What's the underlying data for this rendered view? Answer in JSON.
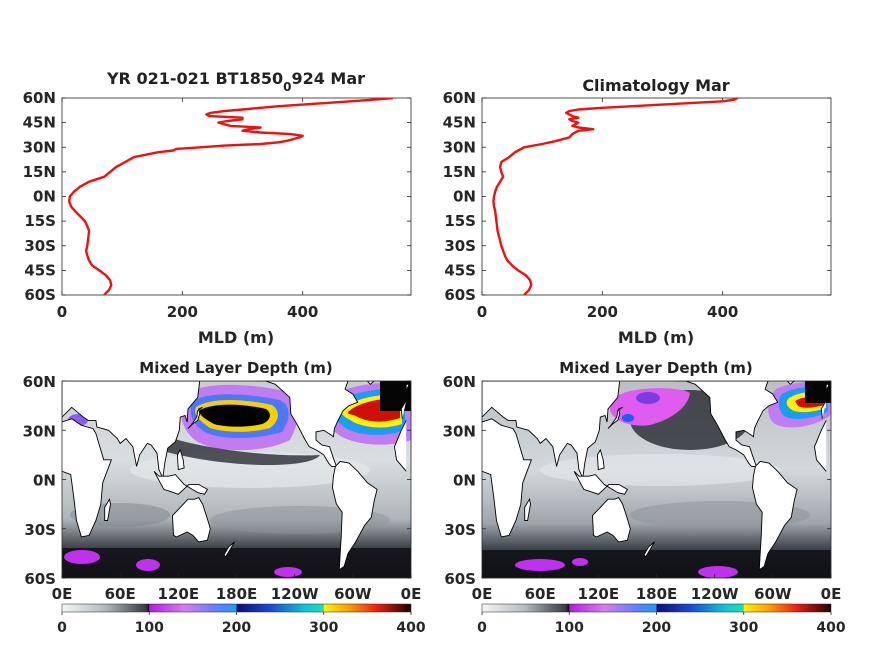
{
  "chart_data": [
    {
      "type": "line",
      "title": "YR 021-021 BT1850",
      "title_subscript": "0",
      "title_tail": "924 Mar",
      "xlabel": "MLD (m)",
      "ylabel": "",
      "xlim": [
        0,
        580
      ],
      "ylim": [
        -60,
        60
      ],
      "x_ticks": [
        "0",
        "200",
        "400"
      ],
      "y_ticks": [
        "60N",
        "45N",
        "30N",
        "15N",
        "0N",
        "15S",
        "30S",
        "45S",
        "60S"
      ],
      "grid": false,
      "color": "#ee1111",
      "points_lat": [
        -60,
        -57,
        -54,
        -51,
        -48,
        -45,
        -42,
        -39,
        -36,
        -33,
        -30,
        -27,
        -24,
        -21,
        -18,
        -15,
        -12,
        -9,
        -6,
        -3,
        0,
        3,
        6,
        9,
        12,
        15,
        18,
        21,
        24,
        27,
        28,
        29,
        30,
        31,
        32,
        33,
        34,
        35,
        36,
        37,
        38,
        39,
        40,
        41,
        42,
        43,
        44,
        45,
        46,
        47,
        48,
        49,
        50,
        51,
        52,
        53,
        54,
        55,
        56,
        57,
        58,
        59,
        60
      ],
      "points_mld": [
        70,
        78,
        82,
        80,
        73,
        62,
        50,
        45,
        42,
        40,
        42,
        43,
        44,
        45,
        42,
        38,
        30,
        22,
        15,
        12,
        13,
        20,
        30,
        45,
        70,
        80,
        90,
        105,
        120,
        160,
        185,
        190,
        230,
        270,
        330,
        360,
        375,
        385,
        395,
        400,
        380,
        330,
        300,
        310,
        330,
        280,
        270,
        260,
        275,
        300,
        300,
        245,
        240,
        248,
        270,
        300,
        330,
        360,
        400,
        440,
        480,
        520,
        550
      ]
    },
    {
      "type": "line",
      "title": "Climatology Mar",
      "xlabel": "MLD (m)",
      "ylabel": "",
      "xlim": [
        0,
        580
      ],
      "ylim": [
        -60,
        60
      ],
      "x_ticks": [
        "0",
        "200",
        "400"
      ],
      "y_ticks": [
        "60N",
        "45N",
        "30N",
        "15N",
        "0N",
        "15S",
        "30S",
        "45S",
        "60S"
      ],
      "grid": false,
      "color": "#ee1111",
      "points_lat": [
        -60,
        -57,
        -54,
        -51,
        -48,
        -45,
        -42,
        -39,
        -36,
        -33,
        -30,
        -27,
        -24,
        -21,
        -18,
        -15,
        -12,
        -9,
        -6,
        -3,
        0,
        3,
        6,
        9,
        12,
        15,
        18,
        21,
        24,
        27,
        30,
        32,
        34,
        36,
        38,
        40,
        41,
        42,
        43,
        44,
        45,
        46,
        47,
        48,
        49,
        50,
        51,
        52,
        53,
        54,
        55,
        56,
        57,
        58,
        59,
        60
      ],
      "points_mld": [
        70,
        78,
        82,
        80,
        73,
        60,
        50,
        42,
        38,
        35,
        32,
        30,
        28,
        26,
        25,
        24,
        23,
        22,
        20,
        19,
        20,
        22,
        25,
        30,
        35,
        32,
        30,
        32,
        45,
        55,
        70,
        100,
        125,
        145,
        150,
        160,
        185,
        160,
        150,
        155,
        160,
        150,
        145,
        160,
        150,
        145,
        140,
        145,
        160,
        200,
        250,
        300,
        350,
        400,
        420,
        425
      ],
      "annotation_note": ""
    },
    {
      "type": "heatmap",
      "title": "Mixed Layer Depth (m)",
      "x_ticks": [
        "0E",
        "60E",
        "120E",
        "180E",
        "120W",
        "60W",
        "0E"
      ],
      "y_ticks": [
        "60N",
        "30N",
        "0N",
        "30S",
        "60S"
      ],
      "colorbar_ticks": [
        "0",
        "100",
        "200",
        "300",
        "400"
      ],
      "colorbar_range": [
        0,
        400
      ]
    },
    {
      "type": "heatmap",
      "title": "Mixed Layer Depth (m)",
      "x_ticks": [
        "0E",
        "60E",
        "120E",
        "180E",
        "120W",
        "60W",
        "0E"
      ],
      "y_ticks": [
        "60N",
        "30N",
        "0N",
        "30S",
        "60S"
      ],
      "colorbar_ticks": [
        "0",
        "100",
        "200",
        "300",
        "400"
      ],
      "colorbar_range": [
        0,
        400
      ]
    }
  ]
}
